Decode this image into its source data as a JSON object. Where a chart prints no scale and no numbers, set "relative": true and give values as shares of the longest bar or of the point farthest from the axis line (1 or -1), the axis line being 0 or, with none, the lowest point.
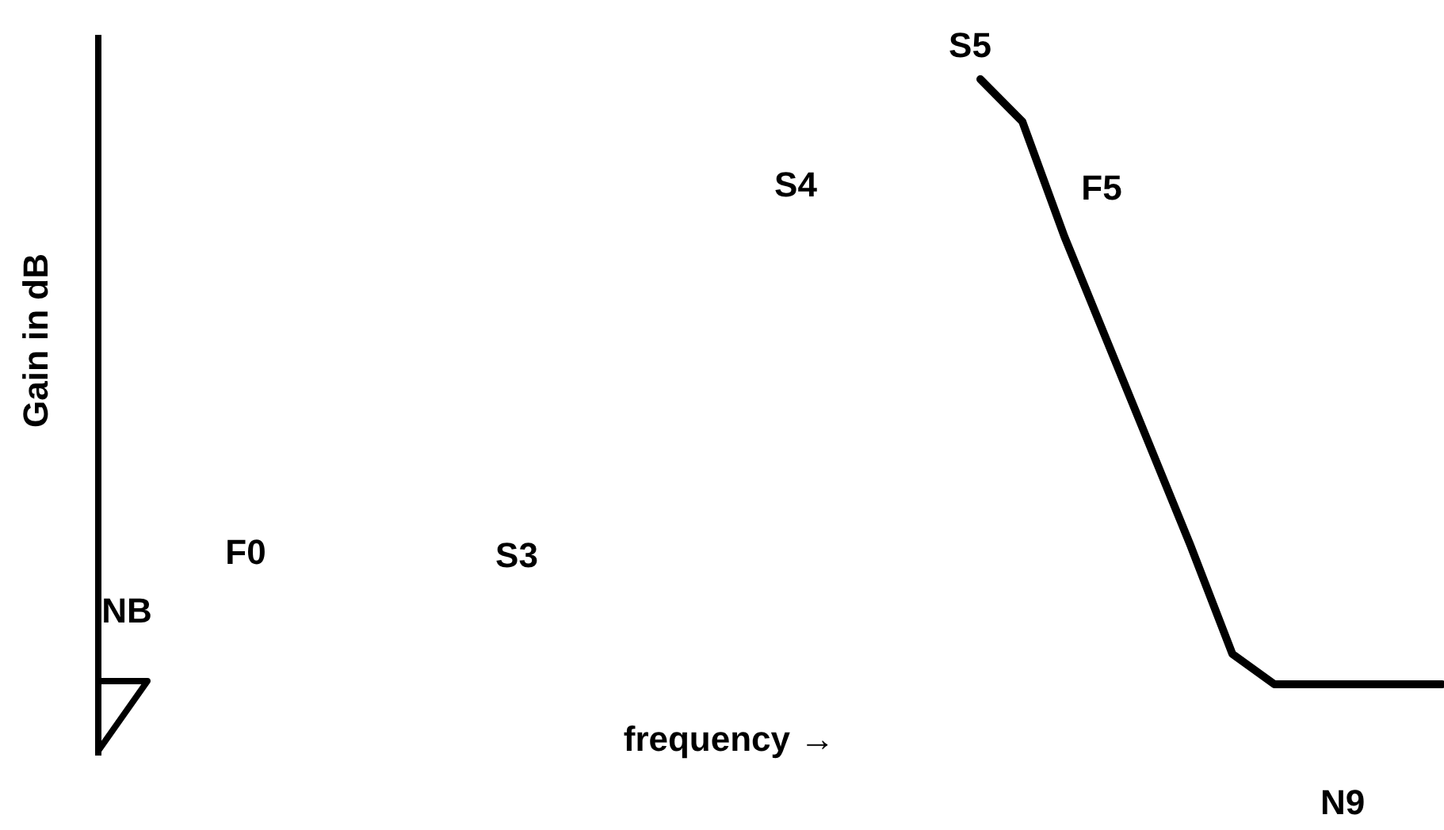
{
  "chart_data": {
    "type": "line",
    "relative": true,
    "xlabel": "frequency →",
    "ylabel": "Gain in dB",
    "categories": [
      null,
      null,
      null,
      null,
      null,
      null,
      null,
      null,
      null,
      null,
      null,
      null,
      null,
      null,
      null,
      null,
      null,
      null,
      null,
      null,
      null,
      null,
      null,
      null,
      null,
      null,
      null,
      null,
      null,
      null,
      null,
      null,
      null
    ],
    "series": [
      {
        "color": "#000000",
        "values": [
          null,
          null,
          null,
          null,
          null,
          null,
          null,
          null,
          null,
          null,
          null,
          null,
          null,
          null,
          null,
          null,
          null,
          null,
          null,
          null,
          null,
          1.0,
          0.93,
          0.74,
          0.57,
          0.4,
          0.23,
          0.05,
          0,
          0,
          0,
          0,
          0
        ]
      }
    ],
    "annotations": [
      "S5",
      "F5",
      "S4",
      "F0",
      "S3",
      "NB",
      "N9"
    ],
    "legend": false,
    "marker": "none",
    "line_style": "solid"
  }
}
